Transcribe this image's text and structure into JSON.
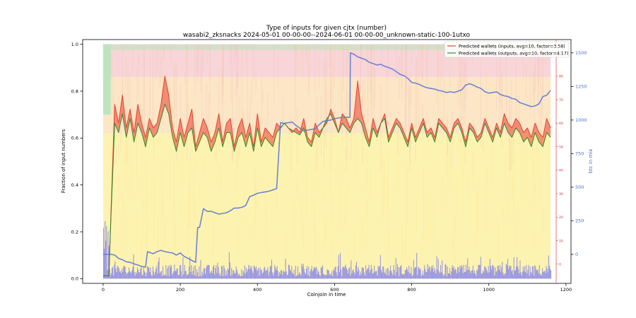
{
  "chart_data": {
    "type": "line",
    "title": "Type of inputs for given cjtx (number)",
    "subtitle": "wasabi2_zksnacks 2024-05-01 00-00-00--2024-06-01 00-00-00_unknown-static-100-1utxo",
    "xlabel": "Coinjoin in time",
    "ylabel": "Fraction of input numbers",
    "y2label": "btc in mix",
    "xlim": [
      -53,
      1213
    ],
    "ylim": [
      -0.02,
      1.02
    ],
    "y2lim": [
      -216,
      1599
    ],
    "y3lim": [
      -8.2,
      95.6
    ],
    "grid": false,
    "legend_position": "top-right",
    "x_ticks": [
      0,
      200,
      400,
      600,
      800,
      1000,
      1200
    ],
    "x_tick_labels": [
      "0",
      "200",
      "400",
      "600",
      "800",
      "1000",
      "1200"
    ],
    "y_ticks": [
      0.0,
      0.2,
      0.4,
      0.6,
      0.8,
      1.0
    ],
    "y_tick_labels": [
      "0.0",
      "0.2",
      "0.4",
      "0.6",
      "0.8",
      "1.0"
    ],
    "y2_ticks": [
      0,
      250,
      500,
      750,
      1000,
      1250,
      1500
    ],
    "y2_tick_labels": [
      "0",
      "250",
      "500",
      "750",
      "1000",
      "1250",
      "1500"
    ],
    "y3_ticks": [
      0,
      10,
      20,
      30,
      40,
      50,
      60,
      70,
      80,
      90
    ],
    "y3_tick_labels": [
      "0",
      "10",
      "20",
      "30",
      "40",
      "50",
      "60",
      "70",
      "80",
      "90"
    ],
    "colors": {
      "inputs_line": "#e8412f",
      "outputs_line": "#2e8b2e",
      "btc_line": "#6b84d8",
      "blue_fill": "#7b7bf0",
      "yellow_fill": "#fdf3b0",
      "orange_fill": "#fbe0b8",
      "pink_fill": "#f8d5d8",
      "green_fill": "#bfe3bf",
      "right_axis_red": "#d62728",
      "right_axis_blue": "#4b6fc9"
    },
    "series": [
      {
        "name": "Predicted wallets (inputs, avg=10, factor=3.58)",
        "axis": "y3",
        "x": [
          0,
          15,
          20,
          30,
          40,
          50,
          60,
          70,
          80,
          90,
          100,
          110,
          120,
          130,
          140,
          150,
          160,
          170,
          180,
          190,
          200,
          210,
          220,
          230,
          240,
          250,
          260,
          270,
          280,
          290,
          300,
          310,
          320,
          330,
          340,
          350,
          360,
          370,
          380,
          390,
          400,
          410,
          420,
          430,
          440,
          450,
          460,
          470,
          480,
          490,
          500,
          510,
          520,
          530,
          540,
          550,
          560,
          570,
          580,
          590,
          600,
          610,
          620,
          630,
          640,
          650,
          660,
          670,
          680,
          690,
          700,
          710,
          720,
          730,
          740,
          750,
          760,
          770,
          780,
          790,
          800,
          810,
          820,
          830,
          840,
          850,
          860,
          870,
          880,
          890,
          900,
          910,
          920,
          930,
          940,
          950,
          960,
          970,
          980,
          990,
          1000,
          1010,
          1020,
          1030,
          1040,
          1050,
          1060,
          1070,
          1080,
          1090,
          1100,
          1110,
          1120,
          1130,
          1140,
          1150,
          1160
        ],
        "y": [
          -5,
          -5,
          20,
          68,
          60,
          72,
          58,
          66,
          56,
          68,
          60,
          54,
          62,
          58,
          60,
          68,
          80,
          72,
          58,
          52,
          62,
          54,
          60,
          66,
          50,
          56,
          62,
          58,
          52,
          56,
          64,
          52,
          60,
          62,
          50,
          58,
          62,
          54,
          60,
          50,
          64,
          52,
          58,
          56,
          54,
          60,
          58,
          60,
          58,
          56,
          58,
          56,
          62,
          54,
          52,
          60,
          56,
          58,
          60,
          66,
          62,
          56,
          64,
          62,
          58,
          62,
          78,
          64,
          58,
          52,
          62,
          56,
          60,
          64,
          54,
          58,
          62,
          60,
          56,
          52,
          60,
          54,
          58,
          62,
          56,
          58,
          54,
          62,
          60,
          58,
          54,
          60,
          62,
          58,
          52,
          60,
          58,
          54,
          56,
          62,
          58,
          54,
          60,
          56,
          64,
          60,
          58,
          62,
          60,
          56,
          58,
          54,
          60,
          56,
          54,
          62,
          58
        ]
      },
      {
        "name": "Predicted wallets (outputs, avg=10, factor=4.17)",
        "axis": "y3",
        "x": [
          0,
          15,
          20,
          30,
          40,
          50,
          60,
          70,
          80,
          90,
          100,
          110,
          120,
          130,
          140,
          150,
          160,
          170,
          180,
          190,
          200,
          210,
          220,
          230,
          240,
          250,
          260,
          270,
          280,
          290,
          300,
          310,
          320,
          330,
          340,
          350,
          360,
          370,
          380,
          390,
          400,
          410,
          420,
          430,
          440,
          450,
          460,
          470,
          480,
          490,
          500,
          510,
          520,
          530,
          540,
          550,
          560,
          570,
          580,
          590,
          600,
          610,
          620,
          630,
          640,
          650,
          660,
          670,
          680,
          690,
          700,
          710,
          720,
          730,
          740,
          750,
          760,
          770,
          780,
          790,
          800,
          810,
          820,
          830,
          840,
          850,
          860,
          870,
          880,
          890,
          900,
          910,
          920,
          930,
          940,
          950,
          960,
          970,
          980,
          990,
          1000,
          1010,
          1020,
          1030,
          1040,
          1050,
          1060,
          1070,
          1080,
          1090,
          1100,
          1110,
          1120,
          1130,
          1140,
          1150,
          1160
        ],
        "y": [
          -5,
          -5,
          18,
          60,
          56,
          64,
          54,
          62,
          52,
          60,
          56,
          50,
          58,
          54,
          56,
          62,
          68,
          64,
          54,
          48,
          56,
          50,
          56,
          58,
          48,
          52,
          56,
          54,
          48,
          52,
          58,
          50,
          56,
          56,
          48,
          54,
          56,
          50,
          56,
          48,
          58,
          50,
          54,
          52,
          50,
          56,
          58,
          60,
          58,
          57,
          56,
          55,
          58,
          52,
          50,
          56,
          54,
          58,
          62,
          64,
          60,
          56,
          60,
          58,
          56,
          60,
          62,
          60,
          54,
          50,
          58,
          54,
          60,
          62,
          52,
          56,
          60,
          58,
          54,
          50,
          58,
          52,
          56,
          60,
          54,
          56,
          52,
          60,
          58,
          56,
          52,
          58,
          60,
          56,
          50,
          58,
          56,
          52,
          54,
          60,
          56,
          52,
          58,
          54,
          60,
          56,
          54,
          58,
          56,
          52,
          54,
          50,
          56,
          52,
          50,
          56,
          54
        ]
      },
      {
        "name": "",
        "axis": "y2",
        "x": [
          0,
          20,
          30,
          40,
          50,
          60,
          70,
          80,
          90,
          100,
          110,
          115,
          120,
          130,
          140,
          150,
          160,
          170,
          180,
          190,
          200,
          210,
          220,
          230,
          240,
          245,
          250,
          260,
          270,
          280,
          290,
          300,
          310,
          320,
          330,
          340,
          350,
          360,
          370,
          380,
          390,
          400,
          410,
          420,
          430,
          440,
          450,
          460,
          470,
          480,
          490,
          500,
          510,
          520,
          530,
          540,
          550,
          560,
          570,
          580,
          590,
          600,
          610,
          620,
          640,
          641,
          650,
          660,
          670,
          680,
          690,
          700,
          710,
          720,
          730,
          740,
          750,
          760,
          770,
          780,
          790,
          800,
          810,
          820,
          830,
          840,
          850,
          860,
          870,
          880,
          890,
          900,
          910,
          920,
          930,
          940,
          950,
          960,
          970,
          980,
          990,
          1000,
          1010,
          1020,
          1030,
          1040,
          1050,
          1060,
          1070,
          1080,
          1090,
          1100,
          1110,
          1120,
          1130,
          1140,
          1150,
          1160
        ],
        "y": [
          0,
          0,
          -5,
          -30,
          -40,
          -55,
          -60,
          -70,
          -80,
          -90,
          -95,
          20,
          15,
          5,
          20,
          30,
          20,
          15,
          10,
          -5,
          10,
          -15,
          -30,
          -45,
          -60,
          200,
          200,
          340,
          320,
          320,
          310,
          300,
          305,
          310,
          325,
          345,
          345,
          350,
          365,
          430,
          440,
          455,
          460,
          465,
          470,
          480,
          490,
          980,
          975,
          980,
          985,
          960,
          940,
          920,
          925,
          930,
          935,
          965,
          990,
          995,
          1000,
          1010,
          1015,
          1020,
          1020,
          1500,
          1490,
          1470,
          1460,
          1450,
          1430,
          1420,
          1410,
          1415,
          1400,
          1390,
          1380,
          1360,
          1340,
          1330,
          1310,
          1280,
          1275,
          1265,
          1250,
          1240,
          1235,
          1230,
          1220,
          1215,
          1205,
          1210,
          1205,
          1215,
          1225,
          1260,
          1270,
          1260,
          1245,
          1235,
          1210,
          1200,
          1205,
          1210,
          1190,
          1180,
          1175,
          1160,
          1155,
          1130,
          1120,
          1110,
          1100,
          1105,
          1120,
          1175,
          1185,
          1220
        ]
      }
    ]
  },
  "legend": {
    "items": [
      {
        "label": "Predicted wallets (inputs, avg=10, factor=3.58)",
        "color": "#e8412f"
      },
      {
        "label": "Predicted wallets (outputs, avg=10, factor=4.17)",
        "color": "#2e8b2e"
      }
    ]
  }
}
